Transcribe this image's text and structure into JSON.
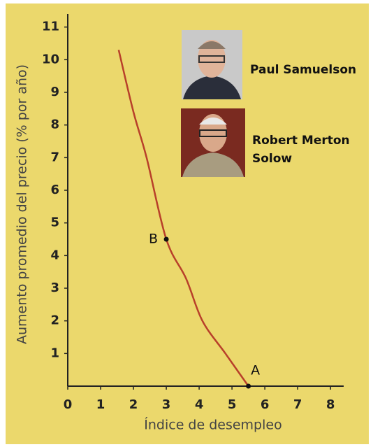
{
  "chart_data": {
    "type": "line",
    "xlabel": "Índice de desempleo",
    "ylabel": "Aumento promedio del precio (% por año)",
    "x": [
      1.55,
      2,
      2.4,
      3,
      3.6,
      4.1,
      4.8,
      5.5
    ],
    "values": [
      10.3,
      8.4,
      7,
      4.5,
      3.3,
      2,
      1,
      0
    ],
    "color": "#b8402a",
    "points": [
      {
        "label": "B",
        "x": 3,
        "y": 4.5
      },
      {
        "label": "A",
        "x": 5.5,
        "y": 0
      }
    ],
    "annotations": [
      "Paul Samuelson",
      "Robert Merton",
      "Solow"
    ],
    "xlim": [
      0,
      8.4
    ],
    "ylim": [
      0,
      11.4
    ],
    "xticks": [
      0,
      1,
      2,
      3,
      4,
      5,
      6,
      7,
      8
    ],
    "yticks": [
      1,
      2,
      3,
      4,
      5,
      6,
      7,
      8,
      9,
      10,
      11
    ]
  }
}
